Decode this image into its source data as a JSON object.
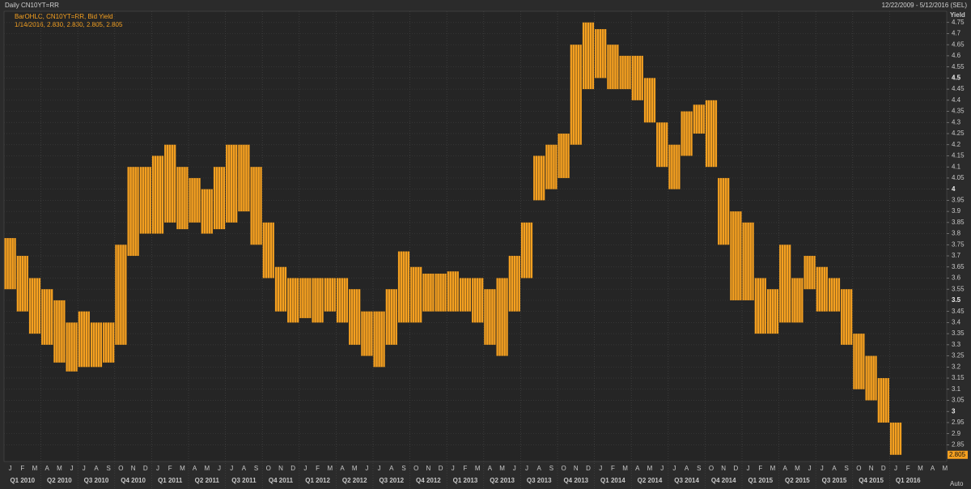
{
  "chart_data": {
    "type": "ohlc_range",
    "title": "Daily CN10YT=RR",
    "date_range": "12/22/2009 - 5/12/2016 (SEL)",
    "study": "BarOHLC, CN10YT=RR, Bid Yield",
    "last_bar": "1/14/2016, 2.830, 2.830, 2.805, 2.805",
    "y_axis_label": "Yield",
    "scale_mode": "Auto",
    "last_value": 2.805,
    "color": "#f5a020",
    "grid": true,
    "categories": [
      "J",
      "F",
      "M",
      "A",
      "M",
      "J",
      "J",
      "A",
      "S",
      "O",
      "N",
      "D",
      "J",
      "F",
      "M",
      "A",
      "M",
      "J",
      "J",
      "A",
      "S",
      "O",
      "N",
      "D",
      "J",
      "F",
      "M",
      "A",
      "M",
      "J",
      "J",
      "A",
      "S",
      "O",
      "N",
      "D",
      "J",
      "F",
      "M",
      "A",
      "M",
      "J",
      "J",
      "A",
      "S",
      "O",
      "N",
      "D",
      "J",
      "F",
      "M",
      "A",
      "M",
      "J",
      "J",
      "A",
      "S",
      "O",
      "N",
      "D",
      "J",
      "F",
      "M",
      "A",
      "M",
      "J",
      "J",
      "A",
      "S",
      "O",
      "N",
      "D",
      "J",
      "F",
      "M",
      "A",
      "M"
    ],
    "quarters": [
      "Q1 2010",
      "Q2 2010",
      "Q3 2010",
      "Q4 2010",
      "Q1 2011",
      "Q2 2011",
      "Q3 2011",
      "Q4 2011",
      "Q1 2012",
      "Q2 2012",
      "Q3 2012",
      "Q4 2012",
      "Q1 2013",
      "Q2 2013",
      "Q3 2013",
      "Q4 2013",
      "Q1 2014",
      "Q2 2014",
      "Q3 2014",
      "Q4 2014",
      "Q1 2015",
      "Q2 2015",
      "Q3 2015",
      "Q4 2015",
      "Q1 2016"
    ],
    "high": [
      3.78,
      3.7,
      3.6,
      3.55,
      3.5,
      3.4,
      3.45,
      3.4,
      3.4,
      3.75,
      4.1,
      4.1,
      4.15,
      4.2,
      4.1,
      4.05,
      4.0,
      4.1,
      4.2,
      4.2,
      4.1,
      3.85,
      3.65,
      3.6,
      3.6,
      3.6,
      3.6,
      3.6,
      3.55,
      3.45,
      3.45,
      3.55,
      3.72,
      3.65,
      3.62,
      3.62,
      3.63,
      3.6,
      3.6,
      3.55,
      3.6,
      3.7,
      3.85,
      4.15,
      4.2,
      4.25,
      4.65,
      4.75,
      4.72,
      4.65,
      4.6,
      4.6,
      4.5,
      4.3,
      4.2,
      4.35,
      4.38,
      4.4,
      4.05,
      3.9,
      3.85,
      3.6,
      3.55,
      3.75,
      3.6,
      3.7,
      3.65,
      3.6,
      3.55,
      3.35,
      3.25,
      3.15,
      2.95,
      null,
      null,
      null,
      null
    ],
    "low": [
      3.55,
      3.45,
      3.35,
      3.3,
      3.22,
      3.18,
      3.2,
      3.2,
      3.22,
      3.3,
      3.7,
      3.8,
      3.8,
      3.85,
      3.82,
      3.85,
      3.8,
      3.82,
      3.85,
      3.9,
      3.75,
      3.6,
      3.45,
      3.4,
      3.42,
      3.4,
      3.45,
      3.4,
      3.3,
      3.25,
      3.2,
      3.3,
      3.4,
      3.4,
      3.45,
      3.45,
      3.45,
      3.45,
      3.4,
      3.3,
      3.25,
      3.45,
      3.6,
      3.95,
      4.0,
      4.05,
      4.2,
      4.45,
      4.5,
      4.45,
      4.45,
      4.4,
      4.3,
      4.1,
      4.0,
      4.15,
      4.25,
      4.1,
      3.75,
      3.5,
      3.5,
      3.35,
      3.35,
      3.4,
      3.4,
      3.55,
      3.45,
      3.45,
      3.3,
      3.1,
      3.05,
      2.95,
      2.805,
      null,
      null,
      null,
      null
    ],
    "ylim": [
      2.775,
      4.8
    ],
    "yticks": [
      2.85,
      2.9,
      2.95,
      3,
      3.05,
      3.1,
      3.15,
      3.2,
      3.25,
      3.3,
      3.35,
      3.4,
      3.45,
      3.5,
      3.55,
      3.6,
      3.65,
      3.7,
      3.75,
      3.8,
      3.85,
      3.9,
      3.95,
      4,
      4.05,
      4.1,
      4.15,
      4.2,
      4.25,
      4.3,
      4.35,
      4.4,
      4.45,
      4.5,
      4.55,
      4.6,
      4.65,
      4.7,
      4.75
    ]
  }
}
